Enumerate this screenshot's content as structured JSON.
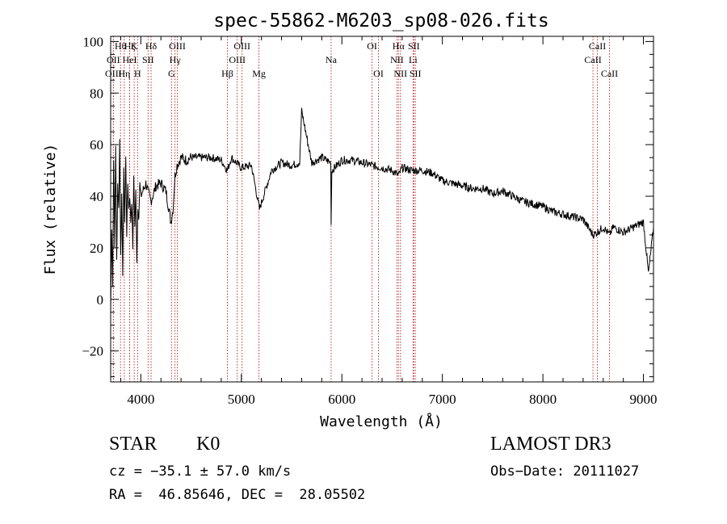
{
  "chart_data": {
    "type": "line",
    "title": "spec-55862-M6203_sp08-026.fits",
    "xlabel": "Wavelength (Å)",
    "ylabel": "Flux (relative)",
    "xlim": [
      3700,
      9100
    ],
    "ylim": [
      -32,
      102
    ],
    "x_ticks": [
      4000,
      5000,
      6000,
      7000,
      8000,
      9000
    ],
    "y_ticks": [
      -20,
      0,
      20,
      40,
      60,
      80,
      100
    ],
    "y_tick_labels": [
      "−20",
      "0",
      "20",
      "40",
      "60",
      "80",
      "100"
    ],
    "grid": false,
    "line_color": "#000000",
    "marker_color": "#b22222",
    "series": [
      {
        "name": "flux",
        "x": [
          3700,
          3710,
          3720,
          3730,
          3740,
          3750,
          3760,
          3770,
          3780,
          3790,
          3800,
          3810,
          3820,
          3830,
          3840,
          3850,
          3860,
          3870,
          3880,
          3890,
          3900,
          3910,
          3920,
          3930,
          3940,
          3950,
          3960,
          3970,
          3980,
          3990,
          4000,
          4050,
          4100,
          4150,
          4200,
          4250,
          4300,
          4320,
          4340,
          4360,
          4400,
          4450,
          4500,
          4600,
          4700,
          4800,
          4861,
          4900,
          5000,
          5100,
          5180,
          5300,
          5400,
          5500,
          5580,
          5600,
          5700,
          5800,
          5890,
          5893,
          5900,
          6000,
          6100,
          6200,
          6300,
          6400,
          6500,
          6563,
          6600,
          6700,
          6800,
          6900,
          7000,
          7100,
          7200,
          7300,
          7400,
          7500,
          7600,
          7700,
          7800,
          7900,
          8000,
          8100,
          8200,
          8300,
          8400,
          8498,
          8542,
          8600,
          8662,
          8700,
          8800,
          8900,
          9000,
          9050,
          9100
        ],
        "y": [
          -5,
          28,
          5,
          55,
          20,
          60,
          15,
          45,
          35,
          62,
          18,
          40,
          10,
          50,
          30,
          55,
          25,
          45,
          35,
          40,
          30,
          38,
          20,
          48,
          28,
          42,
          15,
          35,
          32,
          45,
          40,
          45,
          38,
          44,
          45,
          42,
          30,
          35,
          48,
          52,
          55,
          54,
          55,
          55,
          55,
          54,
          50,
          55,
          51,
          52,
          35,
          50,
          53,
          52,
          53,
          73,
          53,
          55,
          53,
          29,
          50,
          54,
          54,
          53,
          52,
          51,
          50,
          48,
          51,
          50,
          50,
          49,
          46,
          45,
          44,
          43,
          43,
          41,
          42,
          40,
          38,
          37,
          36,
          34,
          33,
          32,
          31,
          25,
          26,
          28,
          25,
          28,
          26,
          28,
          30,
          10,
          28
        ]
      }
    ],
    "line_markers": [
      {
        "label": "Hθ",
        "x": 3798,
        "row": 1
      },
      {
        "label": "OII",
        "x": 3727,
        "row": 2
      },
      {
        "label": "OIII",
        "x": 3727,
        "row": 3
      },
      {
        "label": "Hζ",
        "x": 3889,
        "row": 1
      },
      {
        "label": "HeI",
        "x": 3889,
        "row": 2
      },
      {
        "label": "Hη",
        "x": 3835,
        "row": 3
      },
      {
        "label": "K",
        "x": 3934,
        "row": 1
      },
      {
        "label": "SII",
        "x": 4072,
        "row": 2
      },
      {
        "label": "H",
        "x": 3968,
        "row": 3
      },
      {
        "label": "Hδ",
        "x": 4102,
        "row": 1
      },
      {
        "label": "OIII",
        "x": 4363,
        "row": 1
      },
      {
        "label": "Hγ",
        "x": 4340,
        "row": 2
      },
      {
        "label": "G",
        "x": 4305,
        "row": 3
      },
      {
        "label": "OIII",
        "x": 5007,
        "row": 1
      },
      {
        "label": "OIII",
        "x": 4959,
        "row": 2
      },
      {
        "label": "Hβ",
        "x": 4861,
        "row": 3
      },
      {
        "label": "Mg",
        "x": 5175,
        "row": 3
      },
      {
        "label": "Na",
        "x": 5893,
        "row": 2
      },
      {
        "label": "OI",
        "x": 6300,
        "row": 1
      },
      {
        "label": "OI",
        "x": 6364,
        "row": 3
      },
      {
        "label": "Hα",
        "x": 6563,
        "row": 1
      },
      {
        "label": "NII",
        "x": 6548,
        "row": 2
      },
      {
        "label": "NII",
        "x": 6583,
        "row": 3
      },
      {
        "label": "SII",
        "x": 6716,
        "row": 1
      },
      {
        "label": "Li",
        "x": 6708,
        "row": 2
      },
      {
        "label": "SII",
        "x": 6731,
        "row": 3
      },
      {
        "label": "CaII",
        "x": 8542,
        "row": 1
      },
      {
        "label": "CaII",
        "x": 8498,
        "row": 2
      },
      {
        "label": "CaII",
        "x": 8662,
        "row": 3
      }
    ]
  },
  "info": {
    "object_class": "STAR",
    "subclass": "K0",
    "survey": "LAMOST DR3",
    "redshift_line": "cz = −35.1 ± 57.0 km/s",
    "obs_date_line": "Obs−Date: 20111027",
    "coord_line": "RA =  46.85646, DEC =  28.05502"
  }
}
